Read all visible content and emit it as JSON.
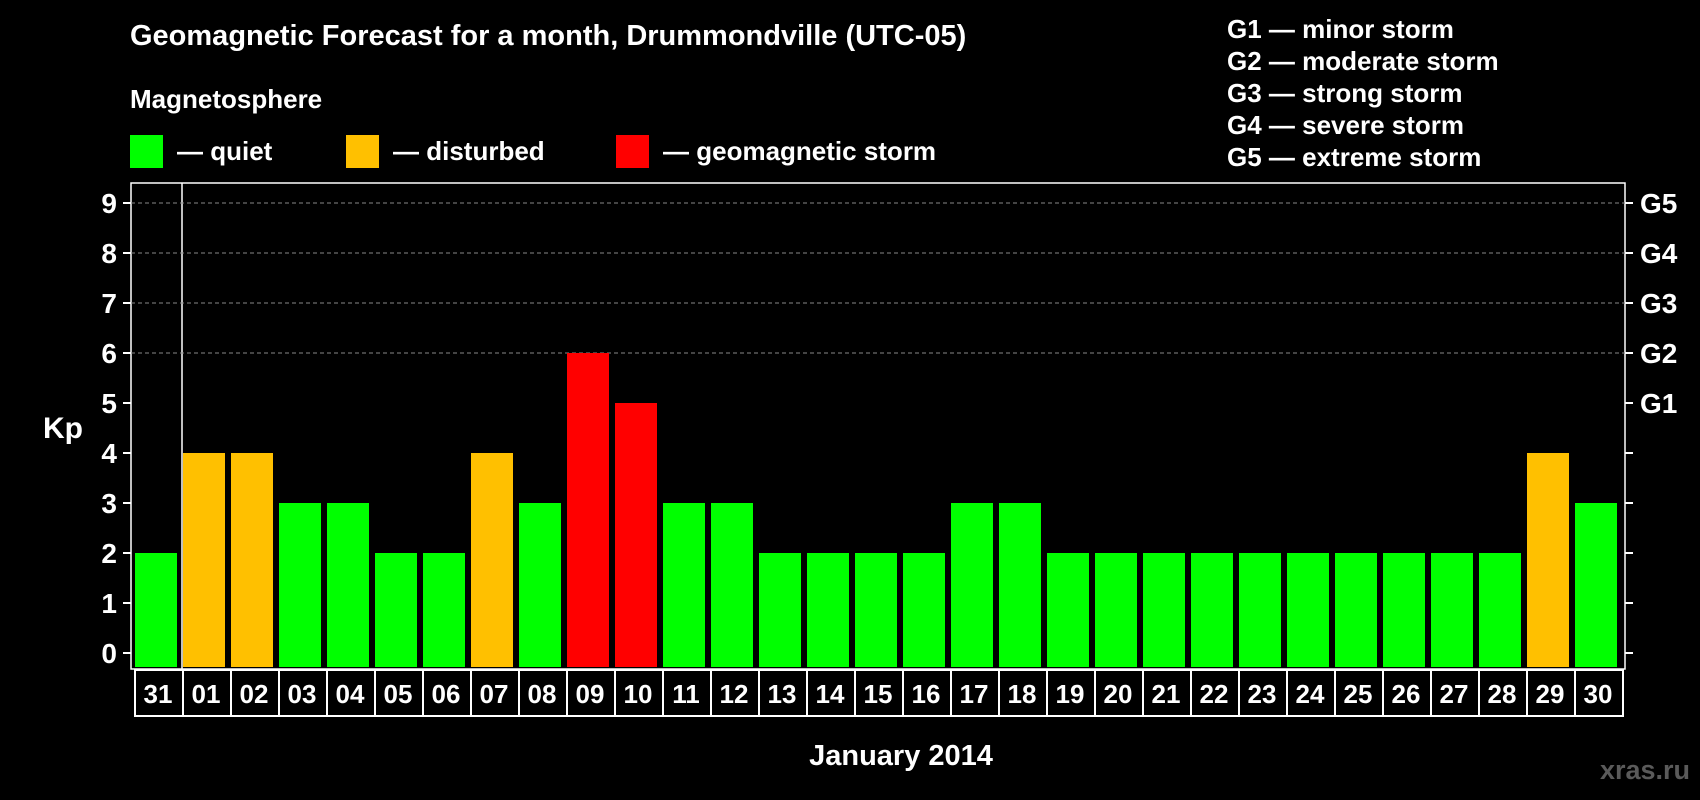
{
  "title": "Geomagnetic Forecast for a month, Drummondville (UTC-05)",
  "subtitle": "Magnetosphere",
  "legend": [
    {
      "label": "— quiet",
      "color": "#00ff00"
    },
    {
      "label": "— disturbed",
      "color": "#ffc000"
    },
    {
      "label": "— geomagnetic storm",
      "color": "#ff0000"
    }
  ],
  "storm_levels": [
    "G1 — minor storm",
    "G2 — moderate storm",
    "G3 — strong storm",
    "G4 — severe storm",
    "G5 — extreme storm"
  ],
  "watermark": "xras.ru",
  "chart_data": {
    "type": "bar",
    "ylabel": "Kp",
    "xlabel": "January 2014",
    "ylim": [
      0,
      9
    ],
    "yticks": [
      0,
      1,
      2,
      3,
      4,
      5,
      6,
      7,
      8,
      9
    ],
    "right_axis_labels": [
      {
        "value": 5,
        "label": "G1"
      },
      {
        "value": 6,
        "label": "G2"
      },
      {
        "value": 7,
        "label": "G3"
      },
      {
        "value": 8,
        "label": "G4"
      },
      {
        "value": 9,
        "label": "G5"
      }
    ],
    "gridlines": [
      6,
      7,
      8,
      9
    ],
    "colors": {
      "quiet": "#00ff00",
      "disturbed": "#ffc000",
      "storm": "#ff0000"
    },
    "categories": [
      "31",
      "01",
      "02",
      "03",
      "04",
      "05",
      "06",
      "07",
      "08",
      "09",
      "10",
      "11",
      "12",
      "13",
      "14",
      "15",
      "16",
      "17",
      "18",
      "19",
      "20",
      "21",
      "22",
      "23",
      "24",
      "25",
      "26",
      "27",
      "28",
      "29",
      "30"
    ],
    "values": [
      2,
      4,
      4,
      3,
      3,
      2,
      2,
      4,
      3,
      6,
      5,
      3,
      3,
      2,
      2,
      2,
      2,
      3,
      3,
      2,
      2,
      2,
      2,
      2,
      2,
      2,
      2,
      2,
      2,
      4,
      3
    ],
    "status": [
      "quiet",
      "disturbed",
      "disturbed",
      "quiet",
      "quiet",
      "quiet",
      "quiet",
      "disturbed",
      "quiet",
      "storm",
      "storm",
      "quiet",
      "quiet",
      "quiet",
      "quiet",
      "quiet",
      "quiet",
      "quiet",
      "quiet",
      "quiet",
      "quiet",
      "quiet",
      "quiet",
      "quiet",
      "quiet",
      "quiet",
      "quiet",
      "quiet",
      "quiet",
      "disturbed",
      "quiet"
    ]
  }
}
